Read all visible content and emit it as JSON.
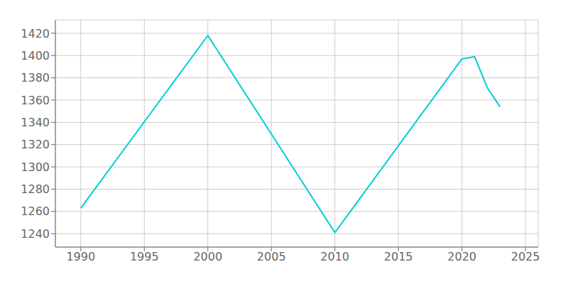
{
  "chart_data": {
    "type": "line",
    "x": [
      1990,
      2000,
      2010,
      2020,
      2021,
      2022,
      2023
    ],
    "values": [
      1263,
      1418,
      1241,
      1397,
      1399,
      1371,
      1354
    ],
    "color": "#00CED1",
    "xlim": [
      1988,
      2026
    ],
    "ylim": [
      1228,
      1432
    ],
    "xticks": [
      1990,
      1995,
      2000,
      2005,
      2010,
      2015,
      2020,
      2025
    ],
    "yticks": [
      1240,
      1260,
      1280,
      1300,
      1320,
      1340,
      1360,
      1380,
      1400,
      1420
    ],
    "grid": true
  }
}
